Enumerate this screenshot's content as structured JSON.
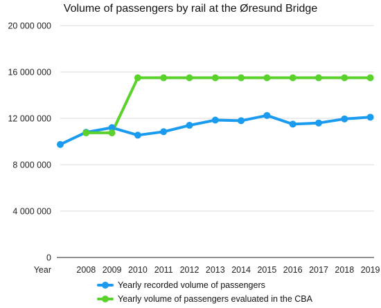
{
  "chart_data": {
    "type": "line",
    "title": "Volume of passengers by rail at the Øresund Bridge",
    "categories": [
      "Year",
      "2008",
      "2009",
      "2010",
      "2011",
      "2012",
      "2013",
      "2014",
      "2015",
      "2016",
      "2017",
      "2018",
      "2019"
    ],
    "y_ticks": [
      "0",
      "4 000 000",
      "8 000 000",
      "12 000 000",
      "16 000 000",
      "20 000 000"
    ],
    "ylim": [
      0,
      20000000
    ],
    "grid": "horizontal",
    "legend_position": "bottom",
    "series": [
      {
        "name": "Yearly recorded volume of passengers",
        "color": "#1a9bf0",
        "values": [
          9750000,
          10800000,
          11200000,
          10550000,
          10850000,
          11400000,
          11850000,
          11800000,
          12250000,
          11500000,
          11600000,
          11950000,
          12100000
        ]
      },
      {
        "name": "Yearly volume of passengers  evaluated in the CBA",
        "color": "#5bd22c",
        "values": [
          null,
          10750000,
          10750000,
          15500000,
          15500000,
          15500000,
          15500000,
          15500000,
          15500000,
          15500000,
          15500000,
          15500000,
          15500000
        ]
      }
    ]
  }
}
